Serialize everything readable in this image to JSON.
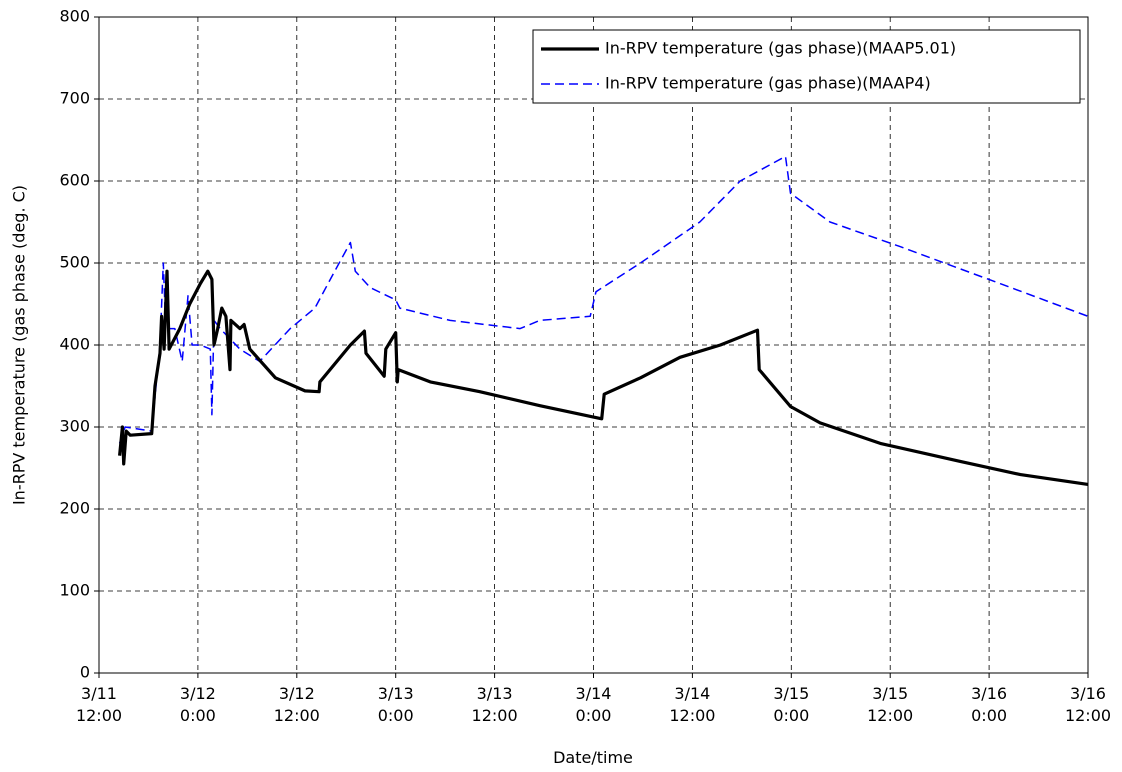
{
  "chart_data": {
    "type": "line",
    "ylabel": "In-RPV temperature (gas phase (deg. C)",
    "xlabel": "Date/time",
    "xlim": [
      "3/11 12:00",
      "3/16 12:00"
    ],
    "xticks": [
      "3/11 12:00",
      "3/12 0:00",
      "3/12 12:00",
      "3/13 0:00",
      "3/13 12:00",
      "3/14 0:00",
      "3/14 12:00",
      "3/15 0:00",
      "3/15 12:00",
      "3/16 0:00",
      "3/16 12:00"
    ],
    "ylim": [
      0,
      800
    ],
    "yticks": [
      0,
      100,
      200,
      300,
      400,
      500,
      600,
      700,
      800
    ],
    "grid": true,
    "legend": "upper right",
    "series": [
      {
        "name": "In-RPV temperature (gas phase)(MAAP5.01)",
        "color": "#000000",
        "style": "solid",
        "x": [
          "3/11 14:30",
          "3/11 14:50",
          "3/11 15:00",
          "3/11 15:18",
          "3/11 15:48",
          "3/11 18:24",
          "3/11 18:48",
          "3/11 19:24",
          "3/11 19:36",
          "3/11 19:54",
          "3/11 20:15",
          "3/11 20:30",
          "3/11 21:48",
          "3/11 23:00",
          "3/12 0:18",
          "3/12 1:12",
          "3/12 1:42",
          "3/12 1:57",
          "3/12 2:24",
          "3/12 2:54",
          "3/12 3:24",
          "3/12 3:54",
          "3/12 4:00",
          "3/12 5:06",
          "3/12 5:36",
          "3/12 6:18",
          "3/12 9:24",
          "3/12 13:00",
          "3/12 14:42",
          "3/12 14:48",
          "3/12 18:30",
          "3/12 20:12",
          "3/12 20:24",
          "3/12 22:36",
          "3/12 22:48",
          "3/13 0:00",
          "3/13 0:12",
          "3/13 0:18",
          "3/13 4:12",
          "3/13 10:12",
          "3/13 17:30",
          "3/14 1:00",
          "3/14 1:18",
          "3/14 5:42",
          "3/14 10:30",
          "3/14 15:24",
          "3/14 19:54",
          "3/14 20:06",
          "3/14 23:54",
          "3/15 3:30",
          "3/15 10:48",
          "3/15 20:30",
          "3/16 3:48",
          "3/16 12:00"
        ],
        "values": [
          265,
          300,
          255,
          295,
          290,
          292,
          350,
          390,
          435,
          395,
          490,
          395,
          420,
          450,
          475,
          490,
          480,
          400,
          420,
          445,
          435,
          370,
          430,
          420,
          425,
          395,
          360,
          344,
          343,
          355,
          400,
          417,
          390,
          362,
          395,
          415,
          355,
          370,
          355,
          343,
          326,
          310,
          340,
          360,
          385,
          400,
          418,
          370,
          325,
          305,
          280,
          258,
          242,
          230
        ]
      },
      {
        "name": "In-RPV temperature (gas phase)(MAAP4)",
        "color": "#0000ff",
        "style": "dashed",
        "x": [
          "3/11 14:30",
          "3/11 15:10",
          "3/11 18:24",
          "3/11 19:24",
          "3/11 19:48",
          "3/11 20:06",
          "3/11 21:12",
          "3/11 22:06",
          "3/11 22:48",
          "3/11 23:18",
          "3/12 0:18",
          "3/12 1:30",
          "3/12 1:42",
          "3/12 1:57",
          "3/12 2:42",
          "3/12 5:06",
          "3/12 7:30",
          "3/12 11:12",
          "3/12 14:12",
          "3/12 16:36",
          "3/12 18:30",
          "3/12 19:06",
          "3/12 20:54",
          "3/13 0:00",
          "3/13 0:30",
          "3/13 6:36",
          "3/13 15:06",
          "3/13 17:30",
          "3/13 23:36",
          "3/14 0:18",
          "3/14 5:42",
          "3/14 12:54",
          "3/14 17:48",
          "3/14 23:18",
          "3/14 23:54",
          "3/15 4:42",
          "3/15 13:12",
          "3/16 1:18",
          "3/16 12:00"
        ],
        "values": [
          280,
          300,
          295,
          400,
          500,
          420,
          420,
          380,
          460,
          400,
          400,
          395,
          315,
          430,
          420,
          395,
          380,
          420,
          445,
          490,
          525,
          490,
          470,
          455,
          445,
          430,
          420,
          430,
          435,
          465,
          500,
          550,
          600,
          630,
          585,
          550,
          520,
          475,
          435
        ]
      }
    ]
  }
}
